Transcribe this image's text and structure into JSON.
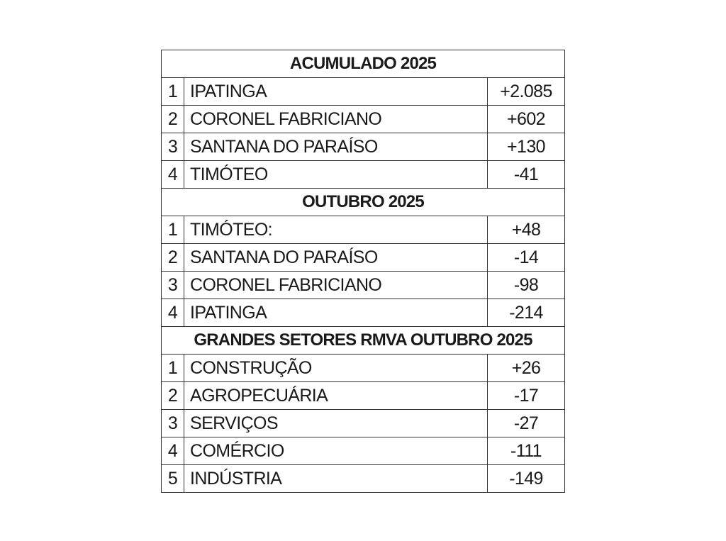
{
  "sections": [
    {
      "title": "ACUMULADO 2025",
      "rows": [
        [
          "1",
          "IPATINGA",
          "+2.085"
        ],
        [
          "2",
          "CORONEL FABRICIANO",
          "+602"
        ],
        [
          "3",
          "SANTANA DO PARAÍSO",
          "+130"
        ],
        [
          "4",
          "TIMÓTEO",
          "-41"
        ]
      ]
    },
    {
      "title": "OUTUBRO 2025",
      "rows": [
        [
          "1",
          "TIMÓTEO:",
          "+48"
        ],
        [
          "2",
          "SANTANA DO PARAÍSO",
          "-14"
        ],
        [
          "3",
          "CORONEL FABRICIANO",
          "-98"
        ],
        [
          "4",
          "IPATINGA",
          "-214"
        ]
      ]
    },
    {
      "title": "GRANDES SETORES RMVA OUTUBRO 2025",
      "rows": [
        [
          "1",
          "CONSTRUÇÃO",
          "+26"
        ],
        [
          "2",
          "AGROPECUÁRIA",
          "-17"
        ],
        [
          "3",
          "SERVIÇOS",
          "-27"
        ],
        [
          "4",
          "COMÉRCIO",
          "-111"
        ],
        [
          "5",
          "INDÚSTRIA",
          "-149"
        ]
      ]
    }
  ]
}
